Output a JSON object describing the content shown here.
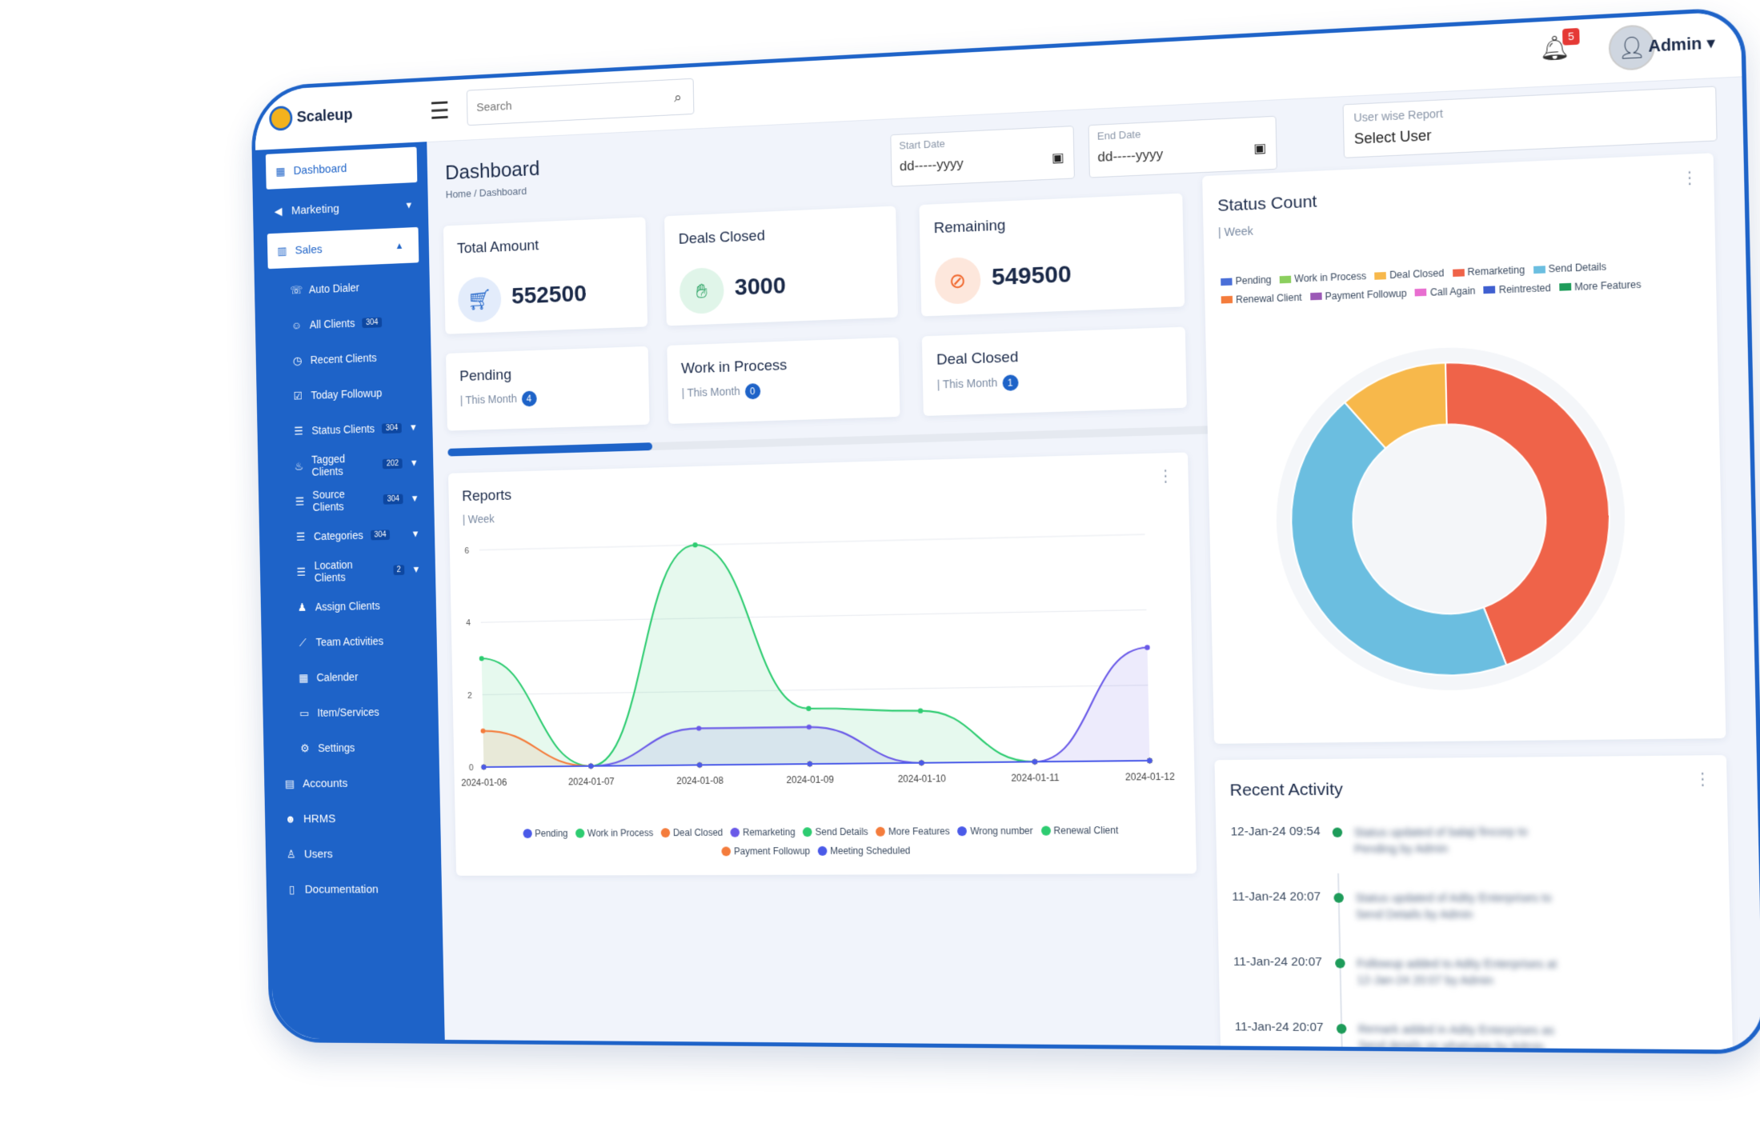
{
  "app": {
    "name": "Scaleup"
  },
  "topbar": {
    "search_placeholder": "Search",
    "notification_count": "5",
    "user_name": "Admin ▾"
  },
  "sidebar": {
    "items": [
      {
        "label": "Dashboard",
        "icon": "grid-icon"
      },
      {
        "label": "Marketing",
        "icon": "megaphone-icon"
      },
      {
        "label": "Sales",
        "icon": "chart-icon"
      },
      {
        "label": "Auto Dialer",
        "icon": "phone-icon"
      },
      {
        "label": "All Clients",
        "badge": "304",
        "icon": "users-icon"
      },
      {
        "label": "Recent Clients",
        "icon": "clock-icon"
      },
      {
        "label": "Today Followup",
        "icon": "calendar-check-icon"
      },
      {
        "label": "Status Clients",
        "badge": "304",
        "icon": "list-icon"
      },
      {
        "label": "Tagged Clients",
        "badge": "202",
        "icon": "flame-icon"
      },
      {
        "label": "Source Clients",
        "badge": "304",
        "icon": "list-icon"
      },
      {
        "label": "Categories",
        "badge": "304",
        "icon": "list-icon"
      },
      {
        "label": "Location Clients",
        "badge": "2",
        "icon": "list-icon"
      },
      {
        "label": "Assign Clients",
        "icon": "user-plus-icon"
      },
      {
        "label": "Team Activities",
        "icon": "line-chart-icon"
      },
      {
        "label": "Calender",
        "icon": "calendar-icon"
      },
      {
        "label": "Item/Services",
        "icon": "file-icon"
      },
      {
        "label": "Settings",
        "icon": "gear-icon"
      },
      {
        "label": "Accounts",
        "icon": "doc-icon"
      },
      {
        "label": "HRMS",
        "icon": "people-icon"
      },
      {
        "label": "Users",
        "icon": "user-icon"
      },
      {
        "label": "Documentation",
        "icon": "document-icon"
      }
    ]
  },
  "header": {
    "title": "Dashboard",
    "breadcrumb": "Home  /  Dashboard",
    "start_date_label": "Start Date",
    "start_date_value": "dd-----yyyy",
    "end_date_label": "End Date",
    "end_date_value": "dd-----yyyy",
    "user_report_label": "User wise Report",
    "user_report_value": "Select User"
  },
  "stats": {
    "total_amount": {
      "title": "Total Amount",
      "value": "552500"
    },
    "deals_closed": {
      "title": "Deals Closed",
      "value": "3000"
    },
    "remaining": {
      "title": "Remaining",
      "value": "549500"
    },
    "pending": {
      "title": "Pending",
      "sub": "| This Month",
      "count": "4"
    },
    "work_in_process": {
      "title": "Work in Process",
      "sub": "| This Month",
      "count": "0"
    },
    "deal_closed": {
      "title": "Deal Closed",
      "sub": "| This Month",
      "count": "1"
    }
  },
  "progress": {
    "fraction": 0.27
  },
  "reports": {
    "title": "Reports",
    "period": "| Week"
  },
  "chart_data": [
    {
      "type": "area",
      "title": "Reports",
      "x": [
        "2024-01-06",
        "2024-01-07",
        "2024-01-08",
        "2024-01-09",
        "2024-01-10",
        "2024-01-11",
        "2024-01-12"
      ],
      "ylim": [
        0,
        6
      ],
      "yticks": [
        "0",
        "2",
        "4",
        "6"
      ],
      "grid": true,
      "legend_position": "bottom",
      "series": [
        {
          "name": "Pending",
          "color": "#4a5ae8",
          "values": [
            0,
            0,
            0,
            0,
            0,
            0,
            0
          ]
        },
        {
          "name": "Work in Process",
          "color": "#2ecc71",
          "values": [
            3,
            0,
            6,
            1.5,
            1.4,
            0,
            0
          ]
        },
        {
          "name": "Deal Closed",
          "color": "#f47c3c",
          "values": [
            1,
            0,
            0,
            0,
            0,
            0,
            0
          ]
        },
        {
          "name": "Remarketing",
          "color": "#6a5ae8",
          "values": [
            0,
            0,
            1,
            1,
            0,
            0,
            3
          ]
        },
        {
          "name": "Send Details",
          "color": "#2ecc71",
          "values": [
            0,
            0,
            0,
            0,
            0,
            0,
            0
          ]
        },
        {
          "name": "More Features",
          "color": "#f47c3c",
          "values": [
            0,
            0,
            0,
            0,
            0,
            0,
            0
          ]
        },
        {
          "name": "Wrong number",
          "color": "#4a5ae8",
          "values": [
            0,
            0,
            0,
            0,
            0,
            0,
            0
          ]
        },
        {
          "name": "Renewal Client",
          "color": "#2ecc71",
          "values": [
            0,
            0,
            0,
            0,
            0,
            0,
            0
          ]
        },
        {
          "name": "Payment Followup",
          "color": "#f47c3c",
          "values": [
            0,
            0,
            0,
            0,
            0,
            0,
            0
          ]
        },
        {
          "name": "Meeting Scheduled",
          "color": "#4a5ae8",
          "values": [
            0,
            0,
            0,
            0,
            0,
            0,
            0
          ]
        }
      ]
    },
    {
      "type": "pie",
      "title": "Status Count",
      "subtitle": "| Week",
      "legend_position": "top",
      "labels": [
        "Pending",
        "Work in Process",
        "Deal Closed",
        "Remarketing",
        "Send Details",
        "Renewal Client",
        "Payment Followup",
        "Call Again",
        "Reintrested",
        "More Features"
      ],
      "colors": [
        "#4a6fd8",
        "#8bcf5e",
        "#f7b84b",
        "#ef6349",
        "#6bbee0",
        "#f47c3c",
        "#9b59b6",
        "#e86ed0",
        "#3f5fd0",
        "#1e9c5a"
      ],
      "values": [
        0,
        0,
        1,
        4,
        4,
        0,
        0,
        0,
        0,
        0
      ]
    }
  ],
  "recent_activity": {
    "title": "Recent Activity",
    "items": [
      {
        "time": "12-Jan-24 09:54",
        "text": "Status updated of balaji fincorp to Pending by Admin"
      },
      {
        "time": "11-Jan-24 20:07",
        "text": "Status updated of Adity Enterprises to Send Details by Admin"
      },
      {
        "time": "11-Jan-24 20:07",
        "text": "Followup added to Adity Enterprises at 12-Jan-24 20:07 by Admin"
      },
      {
        "time": "11-Jan-24 20:07",
        "text": "Remark added in Adity Enterprises as Send details on whatsapp by Admin"
      }
    ]
  }
}
